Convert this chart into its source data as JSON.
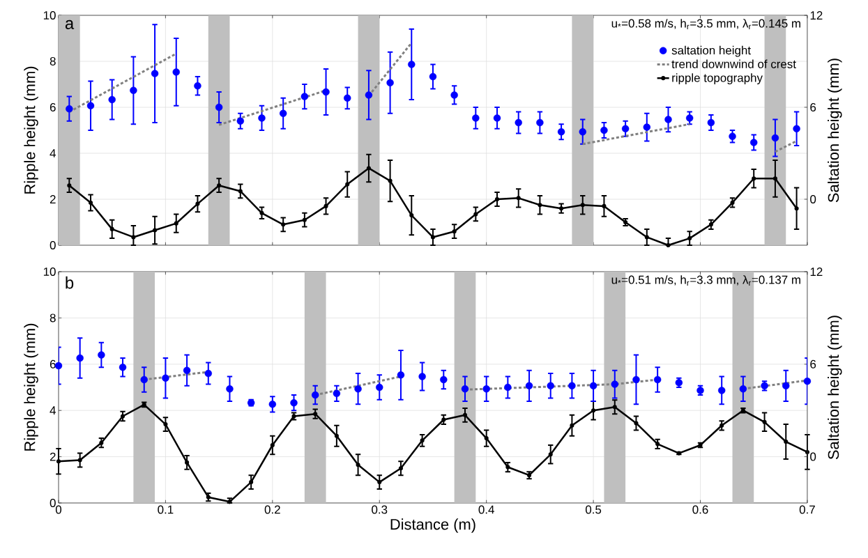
{
  "chart_data": [
    {
      "type": "line",
      "ylabel": "Ripple height (mm)",
      "y2label": "Saltation height (mm)",
      "annotations": [
        "a",
        "u$_{*}$=0.58 m/s, h$_{r}$=3.5 mm, λ$_{r}$=0.145 m"
      ],
      "xlim": [
        0,
        0.7
      ],
      "xticks": [
        0,
        0.1,
        0.2,
        0.3,
        0.4,
        0.5,
        0.6,
        0.7
      ],
      "ylim": [
        0,
        10
      ],
      "yticks": [
        0,
        2,
        4,
        6,
        8,
        10
      ],
      "y2lim": [
        -3,
        12
      ],
      "y2ticks": [
        0,
        6,
        12
      ],
      "grid": true,
      "legend": "top right",
      "tick_labels": "y",
      "bands": [
        {
          "axis": "x",
          "from": 0,
          "to": 0.02,
          "color": "#bfbfbf"
        },
        {
          "axis": "x",
          "from": 0.14,
          "to": 0.16,
          "color": "#bfbfbf"
        },
        {
          "axis": "x",
          "from": 0.28,
          "to": 0.3,
          "color": "#bfbfbf"
        },
        {
          "axis": "x",
          "from": 0.48,
          "to": 0.5,
          "color": "#bfbfbf"
        },
        {
          "axis": "x",
          "from": 0.66,
          "to": 0.68,
          "color": "#bfbfbf"
        }
      ],
      "series": [
        {
          "name": "ripple topography",
          "type": "line",
          "color": "#000000",
          "marker": "circle",
          "line_style": "solid",
          "x": [
            0.01,
            0.03,
            0.05,
            0.07,
            0.09,
            0.11,
            0.13,
            0.15,
            0.17,
            0.19,
            0.21,
            0.23,
            0.25,
            0.27,
            0.29,
            0.31,
            0.33,
            0.35,
            0.37,
            0.39,
            0.41,
            0.43,
            0.45,
            0.47,
            0.49,
            0.51,
            0.53,
            0.55,
            0.57,
            0.59,
            0.61,
            0.63,
            0.65,
            0.67,
            0.69
          ],
          "values": [
            2.6,
            1.85,
            0.7,
            0.35,
            0.65,
            0.95,
            1.8,
            2.6,
            2.35,
            1.4,
            0.9,
            1.1,
            1.7,
            2.65,
            3.35,
            2.8,
            1.3,
            0.35,
            0.6,
            1.35,
            2.0,
            2.05,
            1.75,
            1.6,
            1.75,
            1.7,
            1.0,
            0.35,
            0.0,
            0.3,
            0.9,
            1.85,
            2.9,
            2.9,
            1.6
          ],
          "errors": [
            0.3,
            0.35,
            0.4,
            [
              0,
              0.85
            ],
            0.6,
            0.4,
            0.35,
            0.3,
            0.3,
            0.25,
            0.3,
            0.3,
            0.35,
            0.55,
            0.6,
            0.9,
            0.85,
            0.35,
            0.3,
            0.3,
            0.3,
            0.4,
            0.4,
            0.2,
            0.4,
            0.45,
            0.15,
            0.35,
            [
              0,
              0.3
            ],
            0.3,
            0.2,
            0.2,
            0.4,
            0.8,
            0.9
          ]
        },
        {
          "name": "saltation height",
          "type": "scatter",
          "axis": "y2",
          "color": "#0000ff",
          "marker": "circle",
          "x": [
            0.01,
            0.03,
            0.05,
            0.07,
            0.09,
            0.11,
            0.13,
            0.15,
            0.17,
            0.19,
            0.21,
            0.23,
            0.25,
            0.27,
            0.29,
            0.31,
            0.33,
            0.35,
            0.37,
            0.39,
            0.41,
            0.43,
            0.45,
            0.47,
            0.49,
            0.51,
            0.53,
            0.55,
            0.57,
            0.59,
            0.61,
            0.63,
            0.65,
            0.67,
            0.69
          ],
          "values": [
            5.9,
            6.1,
            6.5,
            7.1,
            8.2,
            8.3,
            7.4,
            6.0,
            5.1,
            5.3,
            5.6,
            6.7,
            7.0,
            6.6,
            6.8,
            7.6,
            8.8,
            8.0,
            6.8,
            5.3,
            5.3,
            5.0,
            5.0,
            4.4,
            4.4,
            4.5,
            4.6,
            4.7,
            5.2,
            5.3,
            5.0,
            4.1,
            3.7,
            4.0,
            4.6
          ],
          "errors": [
            0.8,
            1.6,
            1.3,
            2.2,
            3.2,
            2.2,
            0.6,
            1.0,
            0.5,
            0.8,
            1.0,
            0.8,
            1.5,
            0.7,
            1.6,
            2.0,
            2.3,
            0.8,
            0.6,
            0.7,
            0.7,
            0.7,
            0.7,
            0.5,
            0.8,
            0.5,
            0.5,
            0.9,
            0.8,
            0.4,
            0.5,
            0.4,
            0.5,
            1.2,
            1.1
          ]
        },
        {
          "name": "trend downwind of crest",
          "type": "line",
          "axis": "y2",
          "color": "#808080",
          "marker": "none",
          "line_style": "dotted",
          "x": [
            0.01,
            0.11,
            0.13,
            0.15,
            0.25,
            0.27,
            0.29,
            0.33,
            0.41,
            0.49,
            0.59,
            0.63,
            0.67,
            0.69
          ],
          "values": [
            5.7,
            9.5,
            null,
            4.85,
            7.1,
            null,
            6.75,
            10.2,
            null,
            3.6,
            4.9,
            null,
            3.1,
            3.8
          ]
        }
      ]
    },
    {
      "type": "line",
      "xlabel": "Distance (m)",
      "ylabel": "Ripple height (mm)",
      "y2label": "Saltation height (mm)",
      "annotations": [
        "b",
        "u$_{*}$=0.51 m/s, h$_{r}$=3.3 mm, λ$_{r}$=0.137 m"
      ],
      "xlim": [
        0,
        0.7
      ],
      "xticks": [
        0,
        0.1,
        0.2,
        0.3,
        0.4,
        0.5,
        0.6,
        0.7
      ],
      "ylim": [
        0,
        10
      ],
      "yticks": [
        0,
        2,
        4,
        6,
        8,
        10
      ],
      "y2lim": [
        -3,
        12
      ],
      "y2ticks": [
        0,
        6,
        12
      ],
      "grid": true,
      "bands": [
        {
          "axis": "x",
          "from": 0.07,
          "to": 0.09,
          "color": "#bfbfbf"
        },
        {
          "axis": "x",
          "from": 0.23,
          "to": 0.25,
          "color": "#bfbfbf"
        },
        {
          "axis": "x",
          "from": 0.37,
          "to": 0.39,
          "color": "#bfbfbf"
        },
        {
          "axis": "x",
          "from": 0.51,
          "to": 0.53,
          "color": "#bfbfbf"
        },
        {
          "axis": "x",
          "from": 0.63,
          "to": 0.65,
          "color": "#bfbfbf"
        }
      ],
      "series": [
        {
          "type": "line",
          "color": "#000000",
          "marker": "circle",
          "line_style": "solid",
          "x": [
            0,
            0.02,
            0.04,
            0.06,
            0.08,
            0.1,
            0.12,
            0.14,
            0.16,
            0.18,
            0.2,
            0.22,
            0.24,
            0.26,
            0.28,
            0.3,
            0.32,
            0.34,
            0.36,
            0.38,
            0.4,
            0.42,
            0.44,
            0.46,
            0.48,
            0.5,
            0.52,
            0.54,
            0.56,
            0.58,
            0.6,
            0.62,
            0.64,
            0.66,
            0.68,
            0.7
          ],
          "values": [
            1.8,
            1.85,
            2.6,
            3.75,
            4.25,
            3.4,
            1.75,
            0.25,
            0.05,
            0.9,
            2.5,
            3.75,
            3.85,
            2.9,
            1.65,
            0.9,
            1.5,
            2.7,
            3.6,
            3.8,
            2.8,
            1.55,
            1.2,
            2.1,
            3.35,
            4.0,
            4.15,
            3.45,
            2.55,
            2.15,
            2.5,
            3.35,
            4.0,
            3.5,
            2.65,
            2.2
          ],
          "errors": [
            0.55,
            0.3,
            0.2,
            0.2,
            0.1,
            0.3,
            0.3,
            0.17,
            [
              0,
              0.2
            ],
            0.3,
            0.4,
            0.15,
            0.2,
            0.45,
            0.45,
            0.3,
            0.3,
            0.25,
            0.2,
            0.3,
            0.35,
            0.2,
            0.15,
            0.4,
            0.45,
            0.4,
            0.3,
            0.3,
            0.2,
            0.05,
            0.1,
            0.2,
            0.1,
            0.4,
            0.75,
            0.75
          ]
        },
        {
          "type": "scatter",
          "axis": "y2",
          "color": "#0000ff",
          "marker": "circle",
          "x": [
            0,
            0.02,
            0.04,
            0.06,
            0.08,
            0.1,
            0.12,
            0.14,
            0.16,
            0.18,
            0.2,
            0.22,
            0.24,
            0.26,
            0.28,
            0.3,
            0.32,
            0.34,
            0.36,
            0.38,
            0.4,
            0.42,
            0.44,
            0.46,
            0.48,
            0.5,
            0.52,
            0.54,
            0.56,
            0.58,
            0.6,
            0.62,
            0.64,
            0.66,
            0.68,
            0.7
          ],
          "values": [
            5.9,
            6.4,
            6.6,
            5.8,
            5.0,
            5.1,
            5.6,
            5.4,
            4.4,
            3.5,
            3.4,
            3.5,
            4.0,
            4.1,
            4.4,
            4.5,
            5.3,
            5.2,
            5.0,
            4.4,
            4.4,
            4.5,
            4.6,
            4.6,
            4.6,
            4.6,
            4.7,
            5.0,
            5.0,
            4.8,
            4.3,
            4.3,
            4.4,
            4.6,
            4.6,
            4.9
          ],
          "errors": [
            1.2,
            1.3,
            0.8,
            0.6,
            0.8,
            1.3,
            1.0,
            0.7,
            0.8,
            0.2,
            0.5,
            0.5,
            0.6,
            0.5,
            1.0,
            0.8,
            1.6,
            0.9,
            0.6,
            0.8,
            0.8,
            0.7,
            1.0,
            0.8,
            0.8,
            1.0,
            0.9,
            1.6,
            0.8,
            0.3,
            0.3,
            0.9,
            0.8,
            0.3,
            1.0,
            1.5
          ]
        },
        {
          "type": "line",
          "axis": "y2",
          "color": "#808080",
          "marker": "none",
          "line_style": "dotted",
          "x": [
            0.08,
            0.14,
            0.19,
            0.24,
            0.32,
            0.35,
            0.38,
            0.52,
            0.56,
            0.6,
            0.64,
            0.7
          ],
          "values": [
            5.0,
            5.5,
            null,
            4.0,
            5.2,
            null,
            4.35,
            4.7,
            5.0,
            null,
            4.4,
            4.95
          ]
        }
      ]
    }
  ]
}
